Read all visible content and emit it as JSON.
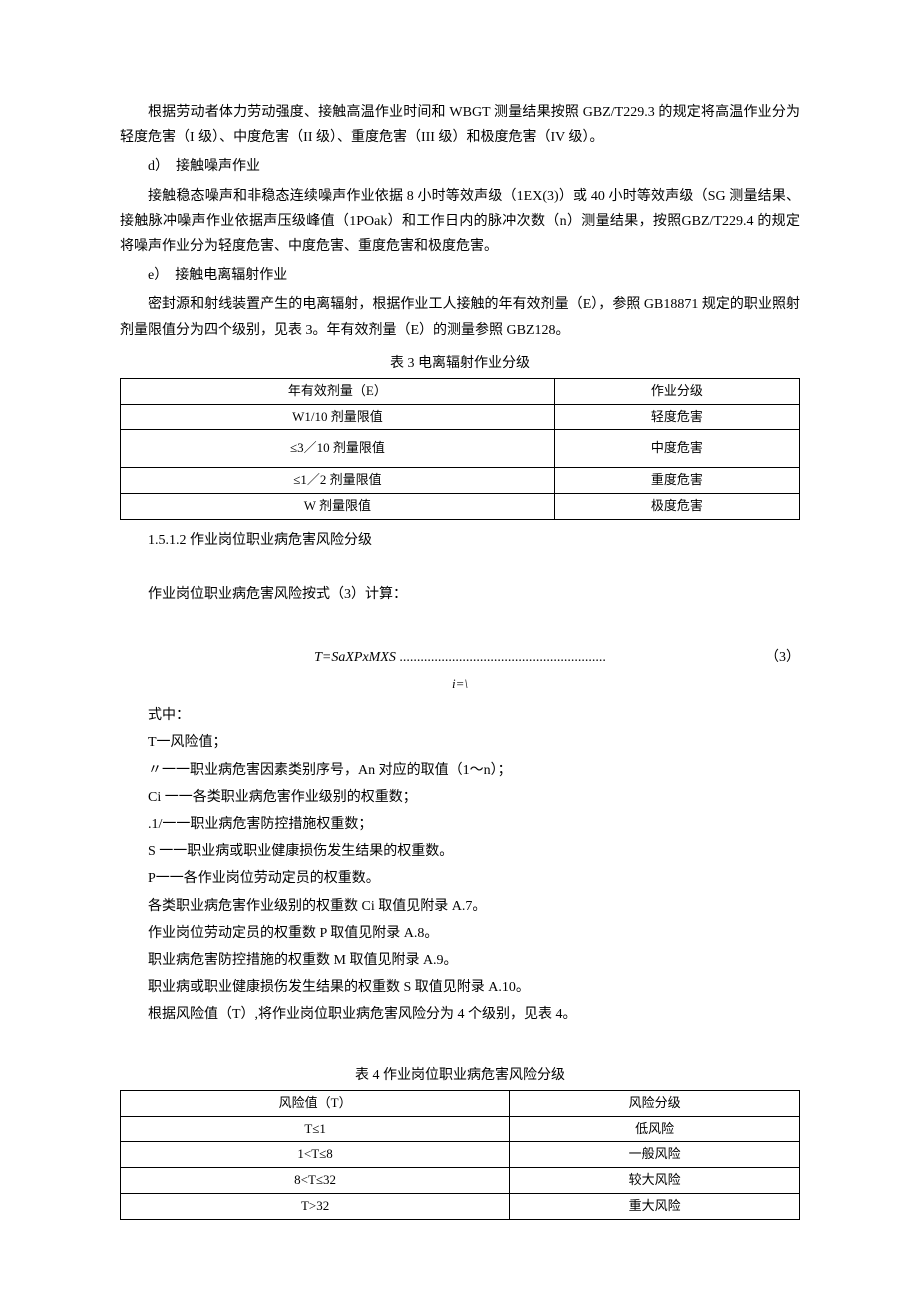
{
  "para1": "根据劳动者体力劳动强度、接触高温作业时间和 WBGT 测量结果按照 GBZ/T229.3 的规定将高温作业分为轻度危害（I 级）、中度危害（II 级）、重度危害（III 级）和极度危害（IV 级）。",
  "item_d": "d）　接触噪声作业",
  "para2": "接触稳态噪声和非稳态连续噪声作业依据 8 小时等效声级（1EX(3)）或 40 小时等效声级（SG 测量结果、接触脉冲噪声作业依据声压级峰值（1POak）和工作日内的脉冲次数（n）测量结果，按照GBZ/T229.4 的规定将噪声作业分为轻度危害、中度危害、重度危害和极度危害。",
  "item_e": "e）　接触电离辐射作业",
  "para3": "密封源和射线装置产生的电离辐射，根据作业工人接触的年有效剂量（E），参照 GB18871 规定的职业照射剂量限值分为四个级别，见表 3。年有效剂量（E）的测量参照 GBZ128。",
  "table3": {
    "title": "表 3 电离辐射作业分级",
    "header": [
      "年有效剂量（E）",
      "作业分级"
    ],
    "rows": [
      [
        "W1/10 剂量限值",
        "轻度危害"
      ],
      [
        "≤3／10 剂量限值",
        "中度危害"
      ],
      [
        "≤1／2 剂量限值",
        "重度危害"
      ],
      [
        "W 剂量限值",
        "极度危害"
      ]
    ]
  },
  "section_1512": "1.5.1.2 作业岗位职业病危害风险分级",
  "para4": "作业岗位职业病危害风险按式（3）计算：",
  "formula": "T=SaXPxMXS",
  "formula_dots": " ...........................................................",
  "formula_num": "（3）",
  "formula_sub": "i=\\",
  "label_shizhong": "式中：",
  "defs": [
    "T一风险值；",
    "〃一一职业病危害因素类别序号，An 对应的取值（1～n）；",
    "Ci 一一各类职业病危害作业级别的权重数；",
    ".1/一一职业病危害防控措施权重数；",
    "S 一一职业病或职业健康损伤发生结果的权重数。",
    "P一一各作业岗位劳动定员的权重数。"
  ],
  "notes": [
    "各类职业病危害作业级别的权重数 Ci 取值见附录 A.7。",
    "作业岗位劳动定员的权重数 P 取值见附录 A.8。",
    "职业病危害防控措施的权重数 M 取值见附录 A.9。",
    "职业病或职业健康损伤发生结果的权重数 S 取值见附录 A.10。",
    "根据风险值（T）,将作业岗位职业病危害风险分为 4 个级别，见表 4。"
  ],
  "table4": {
    "title": "表 4 作业岗位职业病危害风险分级",
    "header": [
      "风险值（T）",
      "风险分级"
    ],
    "rows": [
      [
        "T≤1",
        "低风险"
      ],
      [
        "1<T≤8",
        "一般风险"
      ],
      [
        "8<T≤32",
        "较大风险"
      ],
      [
        "T>32",
        "重大风险"
      ]
    ]
  }
}
